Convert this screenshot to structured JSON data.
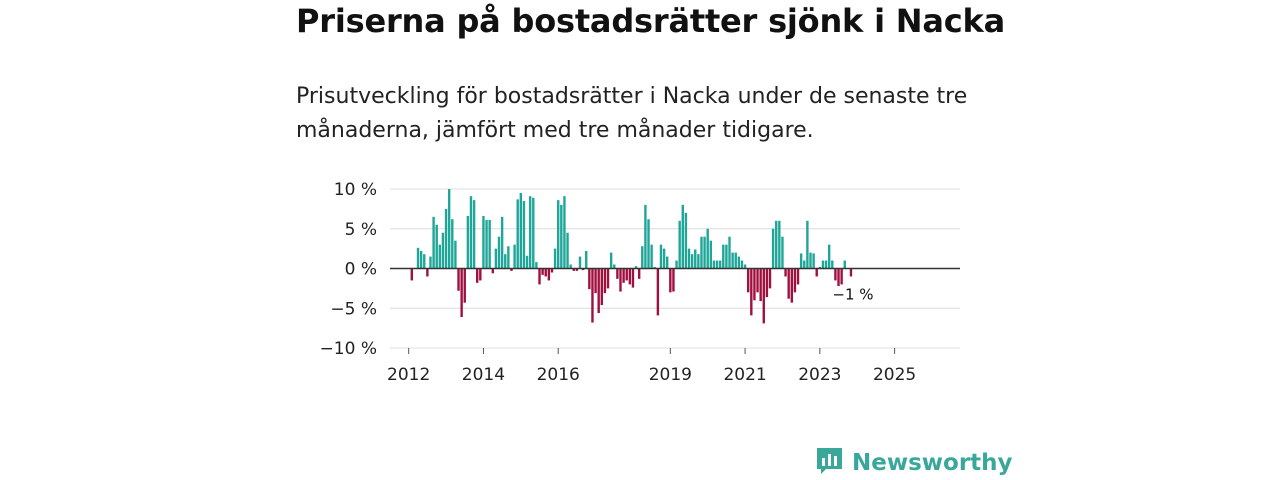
{
  "header": {
    "title": "Priserna på bostadsrätter sjönk i Nacka",
    "subtitle": "Prisutveckling för bostadsrätter i Nacka under de senaste tre månaderna, jämfört med tre månader tidigare."
  },
  "brand": {
    "name": "Newsworthy",
    "icon": "newsworthy-logo-icon",
    "color": "#3aa79b"
  },
  "chart_data": {
    "type": "bar",
    "title": "Priserna på bostadsrätter sjönk i Nacka",
    "xlabel": "",
    "ylabel": "",
    "unit": "%",
    "ylim": [
      -10,
      10
    ],
    "yticks": [
      10,
      5,
      0,
      -5,
      -10
    ],
    "ytick_labels": [
      "10 %",
      "5 %",
      "0 %",
      "−5 %",
      "−10 %"
    ],
    "grid": true,
    "x_start": 2011.5,
    "x_end": 2026.75,
    "xticks": [
      2012,
      2014,
      2016,
      2019,
      2021,
      2023,
      2025
    ],
    "xtick_labels": [
      "2012",
      "2014",
      "2016",
      "2019",
      "2021",
      "2023",
      "2025"
    ],
    "start_period": "2011-07",
    "period": "month",
    "colors": {
      "positive": "#1fa698",
      "negative": "#a0103e"
    },
    "annotation": {
      "text": "−1 %",
      "value": -1
    },
    "values": [
      0,
      0,
      0,
      0,
      0,
      0,
      0,
      -1.5,
      0,
      2.6,
      2.2,
      1.8,
      -1.0,
      1.5,
      6.5,
      5.5,
      3.0,
      4.5,
      7.5,
      10.0,
      6.2,
      3.5,
      -2.8,
      -6.1,
      -4.3,
      6.6,
      9.1,
      8.6,
      -1.8,
      -1.5,
      6.6,
      6.1,
      6.1,
      -0.6,
      2.5,
      4.0,
      6.5,
      1.8,
      2.8,
      -0.3,
      3.0,
      8.7,
      9.5,
      8.5,
      1.6,
      9.1,
      8.9,
      0.8,
      -2.0,
      -0.8,
      -1.0,
      -1.5,
      -0.5,
      2.5,
      8.6,
      8.0,
      9.1,
      4.5,
      0.5,
      -0.3,
      -0.3,
      1.5,
      -0.2,
      2.2,
      -2.6,
      -6.8,
      -3.1,
      -5.6,
      -4.6,
      -3.1,
      -2.5,
      2.0,
      0.5,
      -1.3,
      -2.9,
      -1.8,
      -1.5,
      -2.0,
      -2.4,
      0.3,
      -1.3,
      2.8,
      8.0,
      6.2,
      3.0,
      0.2,
      -5.9,
      3.0,
      2.5,
      1.5,
      -3.0,
      -2.9,
      1.0,
      6.0,
      8.0,
      7.0,
      2.5,
      1.8,
      2.4,
      1.8,
      4.0,
      4.0,
      5.0,
      3.5,
      1.0,
      1.0,
      1.0,
      3.0,
      3.0,
      4.0,
      2.0,
      2.0,
      1.5,
      1.0,
      0.5,
      -3.0,
      -5.9,
      -4.0,
      -3.0,
      -4.1,
      -6.9,
      -3.6,
      -2.5,
      5.0,
      6.0,
      6.0,
      4.0,
      -1.0,
      -3.8,
      -4.3,
      -3.0,
      -2.0,
      1.9,
      1.0,
      6.0,
      2.0,
      1.9,
      -1.0,
      0.2,
      1.0,
      1.0,
      3.0,
      1.0,
      -1.5,
      -2.2,
      -2.0,
      1.0,
      0,
      -1.0
    ]
  }
}
